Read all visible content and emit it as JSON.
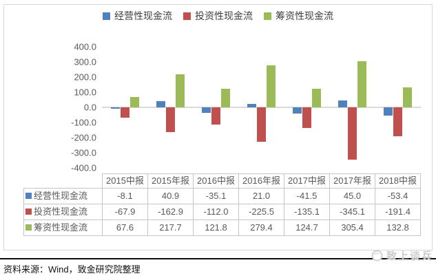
{
  "legend": {
    "items": [
      {
        "label": "经营性现金流",
        "color": "#4F81BD"
      },
      {
        "label": "投资性现金流",
        "color": "#C0504D"
      },
      {
        "label": "筹资性现金流",
        "color": "#9BBB59"
      }
    ]
  },
  "chart_data": {
    "type": "bar",
    "categories": [
      "2015中报",
      "2015年报",
      "2016中报",
      "2016年报",
      "2017中报",
      "2017年报",
      "2018中报"
    ],
    "series": [
      {
        "name": "经营性现金流",
        "color": "#4F81BD",
        "values": [
          -8.1,
          40.9,
          -35.1,
          21.0,
          -41.5,
          45.0,
          -53.4
        ]
      },
      {
        "name": "投资性现金流",
        "color": "#C0504D",
        "values": [
          -67.9,
          -162.9,
          -112.0,
          -225.5,
          -135.1,
          -345.1,
          -191.4
        ]
      },
      {
        "name": "筹资性现金流",
        "color": "#9BBB59",
        "values": [
          67.6,
          217.7,
          121.8,
          279.4,
          124.7,
          305.4,
          132.8
        ]
      }
    ],
    "title": "",
    "xlabel": "",
    "ylabel": "",
    "ylim": [
      -400,
      400
    ],
    "ytick_step": 100,
    "yticks": [
      "400.0",
      "300.0",
      "200.0",
      "100.0",
      "0.0",
      "-100.0",
      "-200.0",
      "-300.0",
      "-400.0"
    ],
    "legend_position": "top",
    "grid": false,
    "zero_line_color": "#D9D9D9",
    "data_table_shown": true
  },
  "footer": {
    "source_text": "资料来源：Wind，致金研究院整理"
  },
  "watermark": {
    "text": "致上谈兵"
  }
}
